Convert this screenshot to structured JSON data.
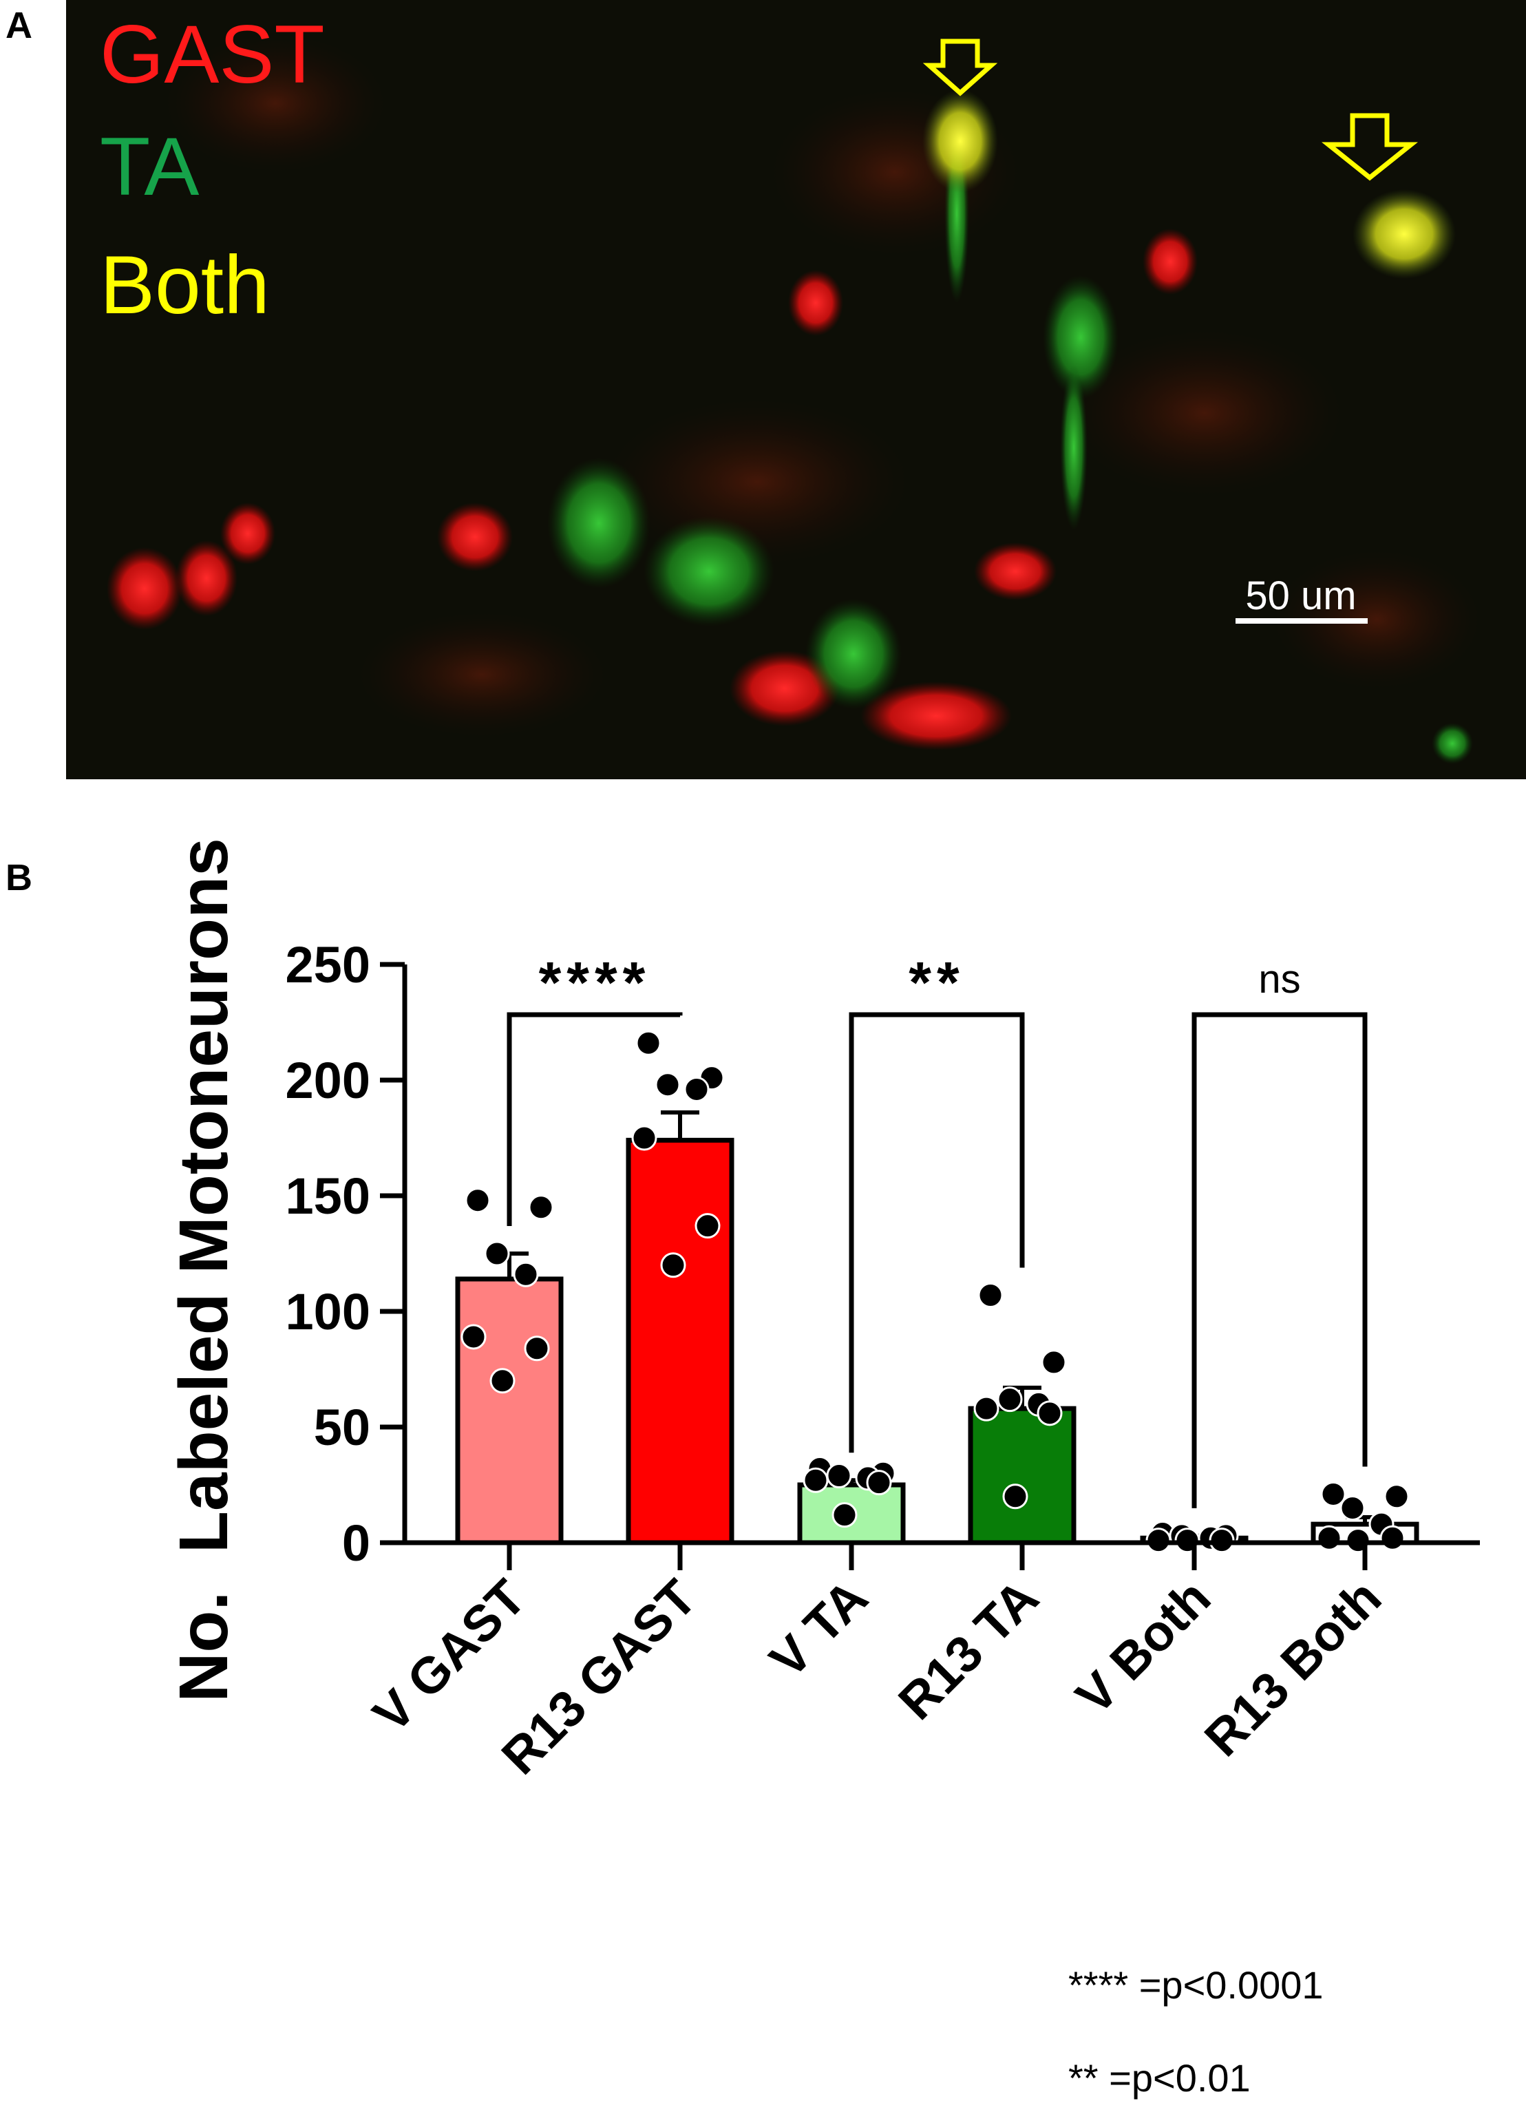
{
  "panel_a": {
    "letter": "A",
    "legend": [
      {
        "label": "GAST",
        "color": "#ff1a1a"
      },
      {
        "label": "TA",
        "color": "#16a34a"
      },
      {
        "label": "Both",
        "color": "#ffff00"
      }
    ],
    "scale_bar_label": "50 um",
    "arrow_color": "#ffff00"
  },
  "panel_b": {
    "letter": "B",
    "footnotes": [
      "**** =p<0.0001",
      "** =p<0.01"
    ]
  },
  "chart_data": {
    "type": "bar",
    "ylabel": "No.  Labeled Motoneurons",
    "ylim": [
      0,
      250
    ],
    "yticks": [
      0,
      50,
      100,
      150,
      200,
      250
    ],
    "categories": [
      "V GAST",
      "R13 GAST",
      "V TA",
      "R13 TA",
      "V Both",
      "R13 Both"
    ],
    "means": [
      114,
      174,
      25,
      58,
      2,
      8
    ],
    "sem": [
      11,
      12,
      2,
      9,
      1,
      3
    ],
    "colors": [
      "#ff8080",
      "#ff0000",
      "#a6f5a6",
      "#087d08",
      "#ffffff",
      "#ffffff"
    ],
    "points": [
      [
        148,
        145,
        125,
        116,
        89,
        84,
        70
      ],
      [
        216,
        201,
        198,
        196,
        175,
        137,
        120
      ],
      [
        32,
        30,
        29,
        28,
        27,
        26,
        12
      ],
      [
        107,
        78,
        62,
        60,
        58,
        56,
        20
      ],
      [
        4,
        3,
        3,
        2,
        1,
        1,
        1
      ],
      [
        21,
        20,
        15,
        8,
        2,
        2,
        1
      ]
    ],
    "comparisons": [
      {
        "groups": [
          0,
          1
        ],
        "label": "****"
      },
      {
        "groups": [
          2,
          3
        ],
        "label": "**"
      },
      {
        "groups": [
          4,
          5
        ],
        "label": "ns"
      }
    ]
  }
}
